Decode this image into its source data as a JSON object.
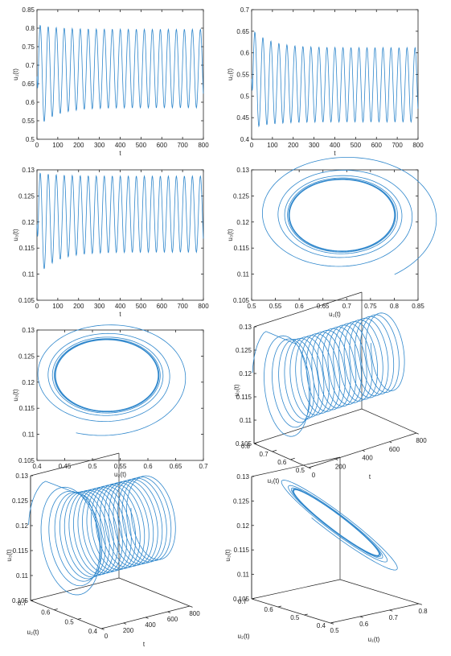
{
  "figure": {
    "accent": "#2f87cc",
    "axis_color": "#222222"
  },
  "chart_data": [
    {
      "type": "line",
      "xlabel": "t",
      "ylabel": "u₁(t)",
      "xlim": [
        0,
        800
      ],
      "ylim": [
        0.5,
        0.85
      ],
      "xticks": [
        0,
        100,
        200,
        300,
        400,
        500,
        600,
        700,
        800
      ],
      "yticks": [
        0.5,
        0.55,
        0.6,
        0.65,
        0.7,
        0.75,
        0.8,
        0.85
      ],
      "xtick_labels": [
        "0",
        "100",
        "200",
        "300",
        "400",
        "500",
        "600",
        "700",
        "800"
      ],
      "ytick_labels": [
        "0.5",
        "0.55",
        "0.6",
        "0.65",
        "0.7",
        "0.75",
        "0.8",
        "0.85"
      ],
      "series": [
        {
          "min_start": 0.53,
          "max_start": 0.81,
          "min_end": 0.585,
          "max_end": 0.797,
          "period": 38.5,
          "decay": 90
        }
      ]
    },
    {
      "type": "line",
      "xlabel": "t",
      "ylabel": "u₂(t)",
      "xlim": [
        0,
        800
      ],
      "ylim": [
        0.4,
        0.7
      ],
      "xticks": [
        0,
        100,
        200,
        300,
        400,
        500,
        600,
        700,
        800
      ],
      "yticks": [
        0.4,
        0.45,
        0.5,
        0.55,
        0.6,
        0.65,
        0.7
      ],
      "xtick_labels": [
        "0",
        "100",
        "200",
        "300",
        "400",
        "500",
        "600",
        "700",
        "800"
      ],
      "ytick_labels": [
        "0.4",
        "0.45",
        "0.5",
        "0.55",
        "0.6",
        "0.65",
        "0.7"
      ],
      "series": [
        {
          "min_start": 0.425,
          "max_start": 0.655,
          "min_end": 0.44,
          "max_end": 0.612,
          "period": 38.5,
          "decay": 90
        }
      ]
    },
    {
      "type": "line",
      "xlabel": "t",
      "ylabel": "u₃(t)",
      "xlim": [
        0,
        800
      ],
      "ylim": [
        0.105,
        0.13
      ],
      "xticks": [
        0,
        100,
        200,
        300,
        400,
        500,
        600,
        700,
        800
      ],
      "yticks": [
        0.105,
        0.11,
        0.115,
        0.12,
        0.125,
        0.13
      ],
      "xtick_labels": [
        "0",
        "100",
        "200",
        "300",
        "400",
        "500",
        "600",
        "700",
        "800"
      ],
      "ytick_labels": [
        "0.105",
        "0.11",
        "0.115",
        "0.12",
        "0.125",
        "0.13"
      ],
      "series": [
        {
          "min_start": 0.1095,
          "max_start": 0.1295,
          "min_end": 0.1142,
          "max_end": 0.1288,
          "period": 38.5,
          "decay": 90
        }
      ]
    },
    {
      "type": "line",
      "xlabel": "u₁(t)",
      "ylabel": "u₃(t)",
      "xlim": [
        0.5,
        0.85
      ],
      "ylim": [
        0.105,
        0.13
      ],
      "xticks": [
        0.5,
        0.55,
        0.6,
        0.65,
        0.7,
        0.75,
        0.8,
        0.85
      ],
      "yticks": [
        0.105,
        0.11,
        0.115,
        0.12,
        0.125,
        0.13
      ],
      "xtick_labels": [
        "0.5",
        "0.55",
        "0.6",
        "0.65",
        "0.7",
        "0.75",
        "0.8",
        "0.85"
      ],
      "ytick_labels": [
        "0.105",
        "0.11",
        "0.115",
        "0.12",
        "0.125",
        "0.13"
      ],
      "series": [
        {
          "start": [
            0.8,
            0.11
          ],
          "center": [
            0.69,
            0.1215
          ],
          "radius": [
            0.105,
            0.0072
          ],
          "turns": 9
        }
      ]
    },
    {
      "type": "line",
      "xlabel": "u₂(t)",
      "ylabel": "u₃(t)",
      "xlim": [
        0.4,
        0.7
      ],
      "ylim": [
        0.105,
        0.13
      ],
      "xticks": [
        0.4,
        0.45,
        0.5,
        0.55,
        0.6,
        0.65,
        0.7
      ],
      "yticks": [
        0.105,
        0.11,
        0.115,
        0.12,
        0.125,
        0.13
      ],
      "xtick_labels": [
        "0.4",
        "0.45",
        "0.5",
        "0.55",
        "0.6",
        "0.65",
        "0.7"
      ],
      "ytick_labels": [
        "0.105",
        "0.11",
        "0.115",
        "0.12",
        "0.125",
        "0.13"
      ],
      "series": [
        {
          "start": [
            0.47,
            0.1102
          ],
          "center": [
            0.526,
            0.1215
          ],
          "radius": [
            0.088,
            0.0072
          ],
          "turns": 9
        }
      ]
    },
    {
      "type": "line",
      "view": "3d",
      "xlabel": "t",
      "ylabel": "u₁(t)",
      "zlabel": "u₃(t)",
      "xlim": [
        0,
        800
      ],
      "ylim": [
        0.5,
        0.8
      ],
      "zlim": [
        0.105,
        0.13
      ],
      "xticks": [
        0,
        200,
        400,
        600,
        800
      ],
      "yticks": [
        0.5,
        0.6,
        0.7,
        0.8
      ],
      "zticks": [
        0.105,
        0.11,
        0.115,
        0.12,
        0.125,
        0.13
      ],
      "xtick_labels": [
        "0",
        "200",
        "400",
        "600",
        "800"
      ],
      "ytick_labels": [
        "0.5",
        "0.6",
        "0.7",
        "0.8"
      ],
      "ztick_labels": [
        "0.105",
        "0.11",
        "0.115",
        "0.12",
        "0.125",
        "0.13"
      ],
      "series": [
        {
          "loops": 20
        }
      ]
    },
    {
      "type": "line",
      "view": "3d",
      "xlabel": "t",
      "ylabel": "u₂(t)",
      "zlabel": "u₃(t)",
      "xlim": [
        0,
        800
      ],
      "ylim": [
        0.4,
        0.7
      ],
      "zlim": [
        0.105,
        0.13
      ],
      "xticks": [
        0,
        200,
        400,
        600,
        800
      ],
      "yticks": [
        0.4,
        0.5,
        0.6,
        0.7
      ],
      "zticks": [
        0.105,
        0.11,
        0.115,
        0.12,
        0.125,
        0.13
      ],
      "xtick_labels": [
        "0",
        "200",
        "400",
        "600",
        "800"
      ],
      "ytick_labels": [
        "0.4",
        "0.5",
        "0.6",
        "0.7"
      ],
      "ztick_labels": [
        "0.105",
        "0.11",
        "0.115",
        "0.12",
        "0.125",
        "0.13"
      ],
      "series": [
        {
          "loops": 20
        }
      ]
    },
    {
      "type": "line",
      "view": "3d",
      "xlabel": "u₁(t)",
      "ylabel": "u₂(t)",
      "zlabel": "u₃(t)",
      "xlim": [
        0.5,
        0.8
      ],
      "ylim": [
        0.4,
        0.7
      ],
      "zlim": [
        0.105,
        0.13
      ],
      "xticks": [
        0.5,
        0.6,
        0.7,
        0.8
      ],
      "yticks": [
        0.4,
        0.5,
        0.6,
        0.7
      ],
      "zticks": [
        0.105,
        0.11,
        0.115,
        0.12,
        0.125,
        0.13
      ],
      "xtick_labels": [
        "0.5",
        "0.6",
        "0.7",
        "0.8"
      ],
      "ytick_labels": [
        "0.4",
        "0.5",
        "0.6",
        "0.7"
      ],
      "ztick_labels": [
        "0.105",
        "0.11",
        "0.115",
        "0.12",
        "0.125",
        "0.13"
      ],
      "series": [
        {
          "turns": 8
        }
      ]
    }
  ]
}
